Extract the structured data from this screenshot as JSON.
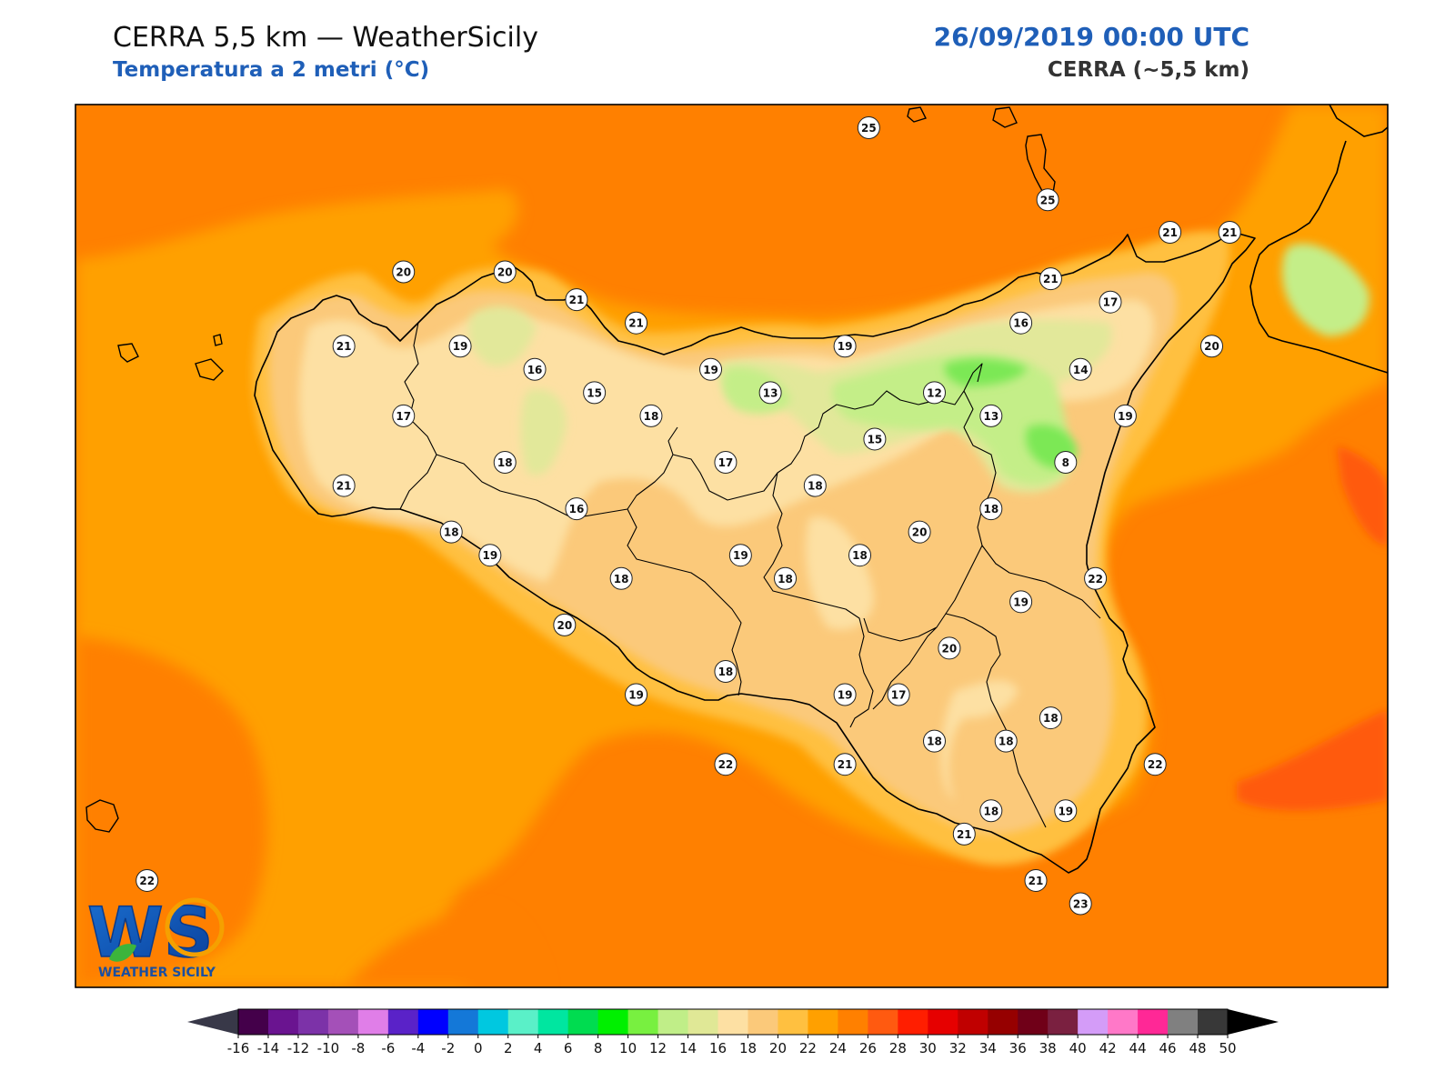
{
  "header": {
    "title": "CERRA 5,5 km — WeatherSicily",
    "subtitle": "Temperatura a 2 metri (°C)",
    "datetime": "26/09/2019 00:00 UTC",
    "model": "CERRA (~5,5 km)"
  },
  "logo": {
    "letters": "WS",
    "name": "WEATHER SICILY"
  },
  "colors": {
    "sea_25": "#ff8000",
    "sea_23": "#ffa000",
    "coast_21": "#ffc040",
    "land_19": "#fbc97a",
    "land_17": "#fde0a3",
    "land_15": "#e2e89a",
    "land_13": "#c4ee88",
    "land_11": "#7be854",
    "sea_27": "#ff5a10"
  },
  "colorbar": {
    "labels": [
      "-16",
      "-14",
      "-12",
      "-10",
      "-8",
      "-6",
      "-4",
      "-2",
      "0",
      "2",
      "4",
      "6",
      "8",
      "10",
      "12",
      "14",
      "16",
      "18",
      "20",
      "22",
      "24",
      "26",
      "28",
      "30",
      "32",
      "34",
      "36",
      "38",
      "40",
      "42",
      "44",
      "46",
      "48",
      "50"
    ],
    "colors": [
      "#44004a",
      "#6a1490",
      "#7c32a8",
      "#a450b8",
      "#e07ee8",
      "#5a22c8",
      "#0000ff",
      "#1478d8",
      "#00c8e0",
      "#5af0c8",
      "#00e6a0",
      "#00dc50",
      "#00f000",
      "#78f040",
      "#c0ee88",
      "#e0e896",
      "#fde0a3",
      "#fbc97a",
      "#ffc040",
      "#ffa000",
      "#ff8000",
      "#ff5a10",
      "#ff1e00",
      "#e60000",
      "#c00000",
      "#960000",
      "#700018",
      "#7a2040",
      "#d49cf8",
      "#ff78c8",
      "#ff2896",
      "#808080",
      "#383838"
    ],
    "under_color": "#383848",
    "over_color": "#000000"
  },
  "stations": [
    {
      "v": "25",
      "lon": 14.36,
      "lat": 38.8
    },
    {
      "v": "25",
      "lon": 14.96,
      "lat": 38.49
    },
    {
      "v": "20",
      "lon": 12.8,
      "lat": 38.18
    },
    {
      "v": "20",
      "lon": 13.14,
      "lat": 38.18
    },
    {
      "v": "21",
      "lon": 13.38,
      "lat": 38.06
    },
    {
      "v": "21",
      "lon": 13.58,
      "lat": 37.96
    },
    {
      "v": "21",
      "lon": 12.6,
      "lat": 37.86
    },
    {
      "v": "19",
      "lon": 12.99,
      "lat": 37.86
    },
    {
      "v": "16",
      "lon": 13.24,
      "lat": 37.76
    },
    {
      "v": "15",
      "lon": 13.44,
      "lat": 37.66
    },
    {
      "v": "19",
      "lon": 13.83,
      "lat": 37.76
    },
    {
      "v": "13",
      "lon": 14.03,
      "lat": 37.66
    },
    {
      "v": "19",
      "lon": 14.28,
      "lat": 37.86
    },
    {
      "v": "12",
      "lon": 14.58,
      "lat": 37.66
    },
    {
      "v": "13",
      "lon": 14.77,
      "lat": 37.56
    },
    {
      "v": "16",
      "lon": 14.87,
      "lat": 37.96
    },
    {
      "v": "14",
      "lon": 15.07,
      "lat": 37.76
    },
    {
      "v": "21",
      "lon": 14.97,
      "lat": 38.15
    },
    {
      "v": "17",
      "lon": 15.17,
      "lat": 38.05
    },
    {
      "v": "21",
      "lon": 15.37,
      "lat": 38.35
    },
    {
      "v": "21",
      "lon": 15.57,
      "lat": 38.35
    },
    {
      "v": "20",
      "lon": 15.51,
      "lat": 37.86
    },
    {
      "v": "19",
      "lon": 15.22,
      "lat": 37.56
    },
    {
      "v": "8",
      "lon": 15.02,
      "lat": 37.36
    },
    {
      "v": "17",
      "lon": 12.8,
      "lat": 37.56
    },
    {
      "v": "18",
      "lon": 13.14,
      "lat": 37.36
    },
    {
      "v": "18",
      "lon": 13.63,
      "lat": 37.56
    },
    {
      "v": "17",
      "lon": 13.88,
      "lat": 37.36
    },
    {
      "v": "15",
      "lon": 14.38,
      "lat": 37.46
    },
    {
      "v": "21",
      "lon": 12.6,
      "lat": 37.26
    },
    {
      "v": "18",
      "lon": 12.96,
      "lat": 37.06
    },
    {
      "v": "16",
      "lon": 13.38,
      "lat": 37.16
    },
    {
      "v": "18",
      "lon": 14.18,
      "lat": 37.26
    },
    {
      "v": "18",
      "lon": 14.77,
      "lat": 37.16
    },
    {
      "v": "20",
      "lon": 14.53,
      "lat": 37.06
    },
    {
      "v": "19",
      "lon": 13.09,
      "lat": 36.96
    },
    {
      "v": "19",
      "lon": 13.93,
      "lat": 36.96
    },
    {
      "v": "18",
      "lon": 13.53,
      "lat": 36.86
    },
    {
      "v": "18",
      "lon": 14.08,
      "lat": 36.86
    },
    {
      "v": "18",
      "lon": 14.33,
      "lat": 36.96
    },
    {
      "v": "22",
      "lon": 15.12,
      "lat": 36.86
    },
    {
      "v": "19",
      "lon": 14.87,
      "lat": 36.76
    },
    {
      "v": "20",
      "lon": 13.34,
      "lat": 36.66
    },
    {
      "v": "20",
      "lon": 14.63,
      "lat": 36.56
    },
    {
      "v": "18",
      "lon": 13.88,
      "lat": 36.46
    },
    {
      "v": "19",
      "lon": 13.58,
      "lat": 36.36
    },
    {
      "v": "19",
      "lon": 14.28,
      "lat": 36.36
    },
    {
      "v": "17",
      "lon": 14.46,
      "lat": 36.36
    },
    {
      "v": "18",
      "lon": 14.58,
      "lat": 36.16
    },
    {
      "v": "18",
      "lon": 14.82,
      "lat": 36.16
    },
    {
      "v": "18",
      "lon": 14.97,
      "lat": 36.26
    },
    {
      "v": "22",
      "lon": 13.88,
      "lat": 36.06
    },
    {
      "v": "21",
      "lon": 14.28,
      "lat": 36.06
    },
    {
      "v": "22",
      "lon": 15.32,
      "lat": 36.06
    },
    {
      "v": "21",
      "lon": 14.68,
      "lat": 35.76
    },
    {
      "v": "18",
      "lon": 14.77,
      "lat": 35.86
    },
    {
      "v": "19",
      "lon": 15.02,
      "lat": 35.86
    },
    {
      "v": "21",
      "lon": 14.92,
      "lat": 35.56
    },
    {
      "v": "23",
      "lon": 15.07,
      "lat": 35.46
    },
    {
      "v": "22",
      "lon": 11.94,
      "lat": 35.56
    }
  ]
}
